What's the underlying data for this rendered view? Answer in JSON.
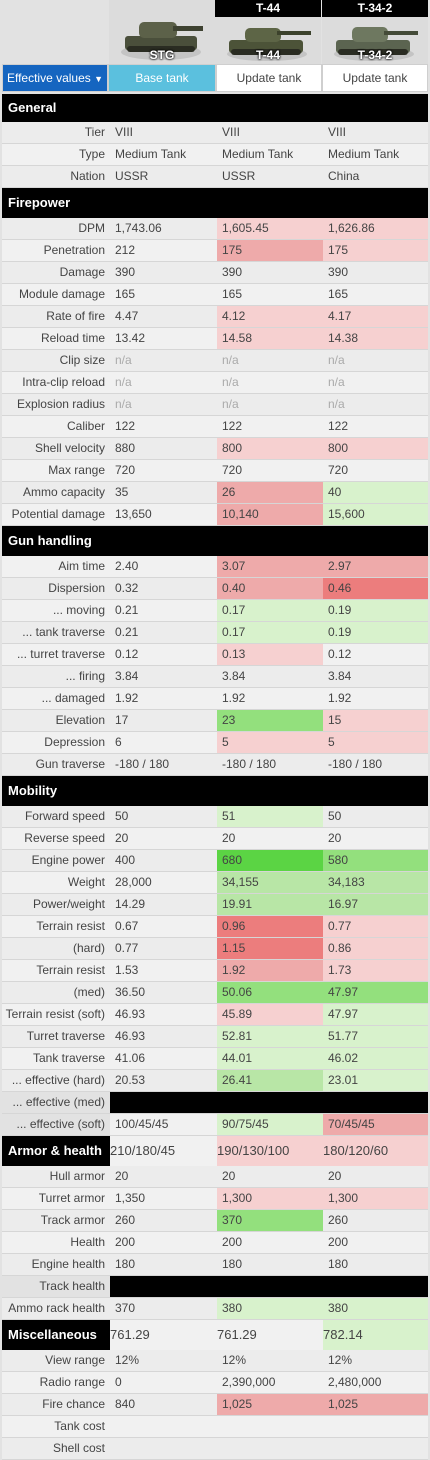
{
  "tanks": [
    {
      "title": "",
      "caption": "STG"
    },
    {
      "title": "T-44",
      "caption": "T-44"
    },
    {
      "title": "T-34-2",
      "caption": "T-34-2"
    }
  ],
  "tabs": {
    "effective": "Effective values",
    "base": "Base tank",
    "update1": "Update tank",
    "update2": "Update tank"
  },
  "colors": {
    "pink": "#f6d0d0",
    "red": "#eeaaaa",
    "deepred": "#ec7d7d",
    "lightgreen": "#d8f2cc",
    "green": "#b8e6a6",
    "midgreen": "#93e07d",
    "deepgreen": "#5bd444"
  },
  "rows": [
    {
      "type": "section",
      "label": "General"
    },
    {
      "label": "Tier",
      "v": [
        "VIII",
        "VIII",
        "VIII"
      ]
    },
    {
      "label": "Type",
      "v": [
        "Medium Tank",
        "Medium Tank",
        "Medium Tank"
      ]
    },
    {
      "label": "Nation",
      "v": [
        "USSR",
        "USSR",
        "China"
      ]
    },
    {
      "type": "section",
      "label": "Firepower"
    },
    {
      "label": "DPM",
      "v": [
        "1,743.06",
        "1,605.45",
        "1,626.86"
      ],
      "h": [
        "",
        "pink",
        "pink"
      ]
    },
    {
      "label": "Penetration",
      "v": [
        "212",
        "175",
        "175"
      ],
      "h": [
        "",
        "red",
        "pink"
      ]
    },
    {
      "label": "Damage",
      "v": [
        "390",
        "390",
        "390"
      ]
    },
    {
      "label": "Module damage",
      "v": [
        "165",
        "165",
        "165"
      ]
    },
    {
      "label": "Rate of fire",
      "v": [
        "4.47",
        "4.12",
        "4.17"
      ],
      "h": [
        "",
        "pink",
        "pink"
      ]
    },
    {
      "label": "Reload time",
      "v": [
        "13.42",
        "14.58",
        "14.38"
      ],
      "h": [
        "",
        "pink",
        "pink"
      ]
    },
    {
      "label": "Clip size",
      "v": [
        "n/a",
        "n/a",
        "n/a"
      ],
      "m": true
    },
    {
      "label": "Intra-clip reload",
      "v": [
        "n/a",
        "n/a",
        "n/a"
      ],
      "m": true
    },
    {
      "label": "Explosion radius",
      "v": [
        "n/a",
        "n/a",
        "n/a"
      ],
      "m": true
    },
    {
      "label": "Caliber",
      "v": [
        "122",
        "122",
        "122"
      ]
    },
    {
      "label": "Shell velocity",
      "v": [
        "880",
        "800",
        "800"
      ],
      "h": [
        "",
        "pink",
        "pink"
      ]
    },
    {
      "label": "Max range",
      "v": [
        "720",
        "720",
        "720"
      ]
    },
    {
      "label": "Ammo capacity",
      "v": [
        "35",
        "26",
        "40"
      ],
      "h": [
        "",
        "red",
        "lightgreen"
      ]
    },
    {
      "label": "Potential damage",
      "v": [
        "13,650",
        "10,140",
        "15,600"
      ],
      "h": [
        "",
        "red",
        "lightgreen"
      ]
    },
    {
      "type": "section",
      "label": "Gun handling"
    },
    {
      "label": "Aim time",
      "v": [
        "2.40",
        "3.07",
        "2.97"
      ],
      "h": [
        "",
        "red",
        "red"
      ]
    },
    {
      "label": "Dispersion",
      "v": [
        "0.32",
        "0.40",
        "0.46"
      ],
      "h": [
        "",
        "red",
        "deepred"
      ]
    },
    {
      "label": "... moving",
      "v": [
        "0.21",
        "0.17",
        "0.19"
      ],
      "h": [
        "",
        "lightgreen",
        "lightgreen"
      ]
    },
    {
      "label": "... tank traverse",
      "v": [
        "0.21",
        "0.17",
        "0.19"
      ],
      "h": [
        "",
        "lightgreen",
        "lightgreen"
      ]
    },
    {
      "label": "... turret traverse",
      "v": [
        "0.12",
        "0.13",
        "0.12"
      ],
      "h": [
        "",
        "pink",
        ""
      ]
    },
    {
      "label": "... firing",
      "v": [
        "3.84",
        "3.84",
        "3.84"
      ]
    },
    {
      "label": "... damaged",
      "v": [
        "1.92",
        "1.92",
        "1.92"
      ]
    },
    {
      "label": "Elevation",
      "v": [
        "17",
        "23",
        "15"
      ],
      "h": [
        "",
        "midgreen",
        "pink"
      ]
    },
    {
      "label": "Depression",
      "v": [
        "6",
        "5",
        "5"
      ],
      "h": [
        "",
        "pink",
        "pink"
      ]
    },
    {
      "label": "Gun traverse",
      "v": [
        "-180 / 180",
        "-180 / 180",
        "-180 / 180"
      ]
    },
    {
      "type": "section",
      "label": "Mobility"
    },
    {
      "label": "Forward speed",
      "v": [
        "50",
        "51",
        "50"
      ],
      "h": [
        "",
        "lightgreen",
        ""
      ]
    },
    {
      "label": "Reverse speed",
      "v": [
        "20",
        "20",
        "20"
      ]
    },
    {
      "label": "Engine power",
      "v": [
        "400",
        "680",
        "580"
      ],
      "h": [
        "",
        "deepgreen",
        "midgreen"
      ]
    },
    {
      "label": "Weight",
      "v": [
        "28,000",
        "34,155",
        "34,183"
      ],
      "h": [
        "",
        "green",
        "green"
      ]
    },
    {
      "label": "Power/weight",
      "v": [
        "14.29",
        "19.91",
        "16.97"
      ],
      "h": [
        "",
        "green",
        "green"
      ]
    },
    {
      "label": "Terrain resist",
      "v": [
        "0.67",
        "0.96",
        "0.77"
      ],
      "h": [
        "",
        "deepred",
        "pink"
      ]
    },
    {
      "label": "(hard)",
      "v": [
        "0.77",
        "1.15",
        "0.86"
      ],
      "h": [
        "",
        "deepred",
        "pink"
      ]
    },
    {
      "label": "Terrain resist",
      "v": [
        "1.53",
        "1.92",
        "1.73"
      ],
      "h": [
        "",
        "red",
        "pink"
      ]
    },
    {
      "label": "(med)",
      "v": [
        "36.50",
        "50.06",
        "47.97"
      ],
      "h": [
        "",
        "midgreen",
        "midgreen"
      ]
    },
    {
      "label": "Terrain resist (soft)",
      "v": [
        "46.93",
        "45.89",
        "47.97"
      ],
      "h": [
        "",
        "pink",
        "lightgreen"
      ]
    },
    {
      "label": "Turret traverse",
      "v": [
        "46.93",
        "52.81",
        "51.77"
      ],
      "h": [
        "",
        "lightgreen",
        "lightgreen"
      ]
    },
    {
      "label": "Tank traverse",
      "v": [
        "41.06",
        "44.01",
        "46.02"
      ],
      "h": [
        "",
        "lightgreen",
        "lightgreen"
      ]
    },
    {
      "label": "... effective (hard)",
      "v": [
        "20.53",
        "26.41",
        "23.01"
      ],
      "h": [
        "",
        "green",
        "lightgreen"
      ]
    },
    {
      "type": "black_label",
      "label": "... effective (med)"
    },
    {
      "type": "black_label",
      "label": "... effective (soft)",
      "v": [
        "100/45/45",
        "90/75/45",
        "70/45/45"
      ],
      "h": [
        "",
        "lightgreen",
        "red"
      ]
    },
    {
      "type": "section",
      "label": "Armor & health",
      "v": [
        "210/180/45",
        "190/130/100",
        "180/120/60"
      ],
      "h": [
        "",
        "pink",
        "pink"
      ]
    },
    {
      "label": "Hull armor",
      "v": [
        "20",
        "20",
        "20"
      ]
    },
    {
      "label": "Turret armor",
      "v": [
        "1,350",
        "1,300",
        "1,300"
      ],
      "h": [
        "",
        "pink",
        "pink"
      ]
    },
    {
      "label": "Track armor",
      "v": [
        "260",
        "370",
        "260"
      ],
      "h": [
        "",
        "midgreen",
        ""
      ]
    },
    {
      "label": "Health",
      "v": [
        "200",
        "200",
        "200"
      ]
    },
    {
      "label": "Engine health",
      "v": [
        "180",
        "180",
        "180"
      ]
    },
    {
      "type": "black_label",
      "label": "Track health"
    },
    {
      "label": "Ammo rack health",
      "v": [
        "370",
        "380",
        "380"
      ],
      "h": [
        "",
        "lightgreen",
        "lightgreen"
      ]
    },
    {
      "type": "section",
      "label": "Miscellaneous",
      "v": [
        "761.29",
        "761.29",
        "782.14"
      ],
      "h": [
        "",
        "",
        "lightgreen"
      ]
    },
    {
      "label": "View range",
      "v": [
        "12%",
        "12%",
        "12%"
      ]
    },
    {
      "label": "Radio range",
      "v": [
        "0",
        "2,390,000",
        "2,480,000"
      ]
    },
    {
      "label": "Fire chance",
      "v": [
        "840",
        "1,025",
        "1,025"
      ],
      "h": [
        "",
        "red",
        "red"
      ]
    },
    {
      "label": "Tank cost",
      "v": [
        "",
        "",
        ""
      ]
    },
    {
      "label": "Shell cost",
      "v": [
        "",
        "",
        ""
      ]
    }
  ]
}
